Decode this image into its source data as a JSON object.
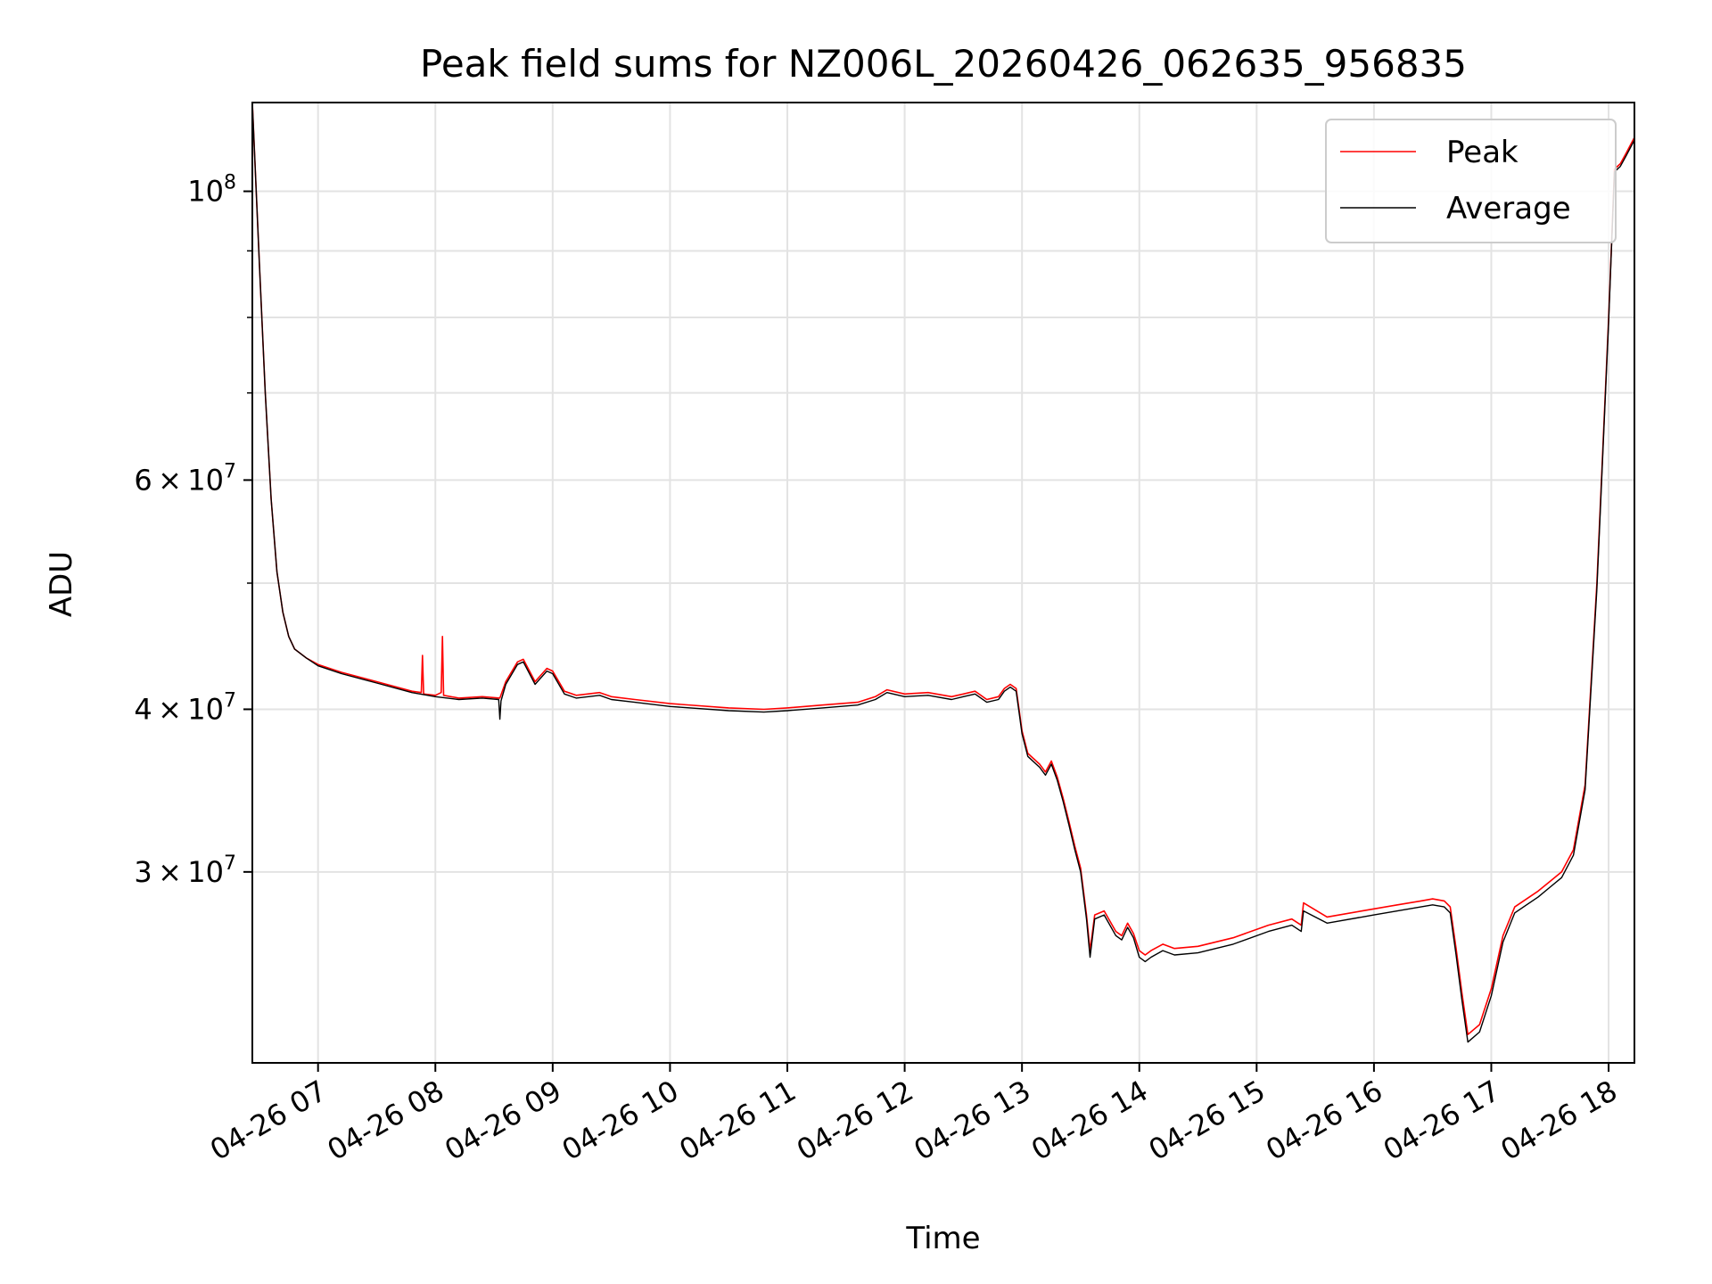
{
  "chart_data": {
    "type": "line",
    "title": "Peak field sums for NZ006L_20260426_062635_956835",
    "xlabel": "Time",
    "ylabel": "ADU",
    "yscale": "log",
    "xlim": [
      6.44,
      18.22
    ],
    "ylim": [
      21400000,
      117000000
    ],
    "grid": true,
    "legend_position": "upper-right",
    "x_ticks": [
      {
        "value": 7,
        "label": "04-26 07"
      },
      {
        "value": 8,
        "label": "04-26 08"
      },
      {
        "value": 9,
        "label": "04-26 09"
      },
      {
        "value": 10,
        "label": "04-26 10"
      },
      {
        "value": 11,
        "label": "04-26 11"
      },
      {
        "value": 12,
        "label": "04-26 12"
      },
      {
        "value": 13,
        "label": "04-26 13"
      },
      {
        "value": 14,
        "label": "04-26 14"
      },
      {
        "value": 15,
        "label": "04-26 15"
      },
      {
        "value": 16,
        "label": "04-26 16"
      },
      {
        "value": 17,
        "label": "04-26 17"
      },
      {
        "value": 18,
        "label": "04-26 18"
      }
    ],
    "y_ticks": [
      {
        "value": 30000000,
        "mantissa": "3",
        "exponent": "7"
      },
      {
        "value": 40000000,
        "mantissa": "4",
        "exponent": "7"
      },
      {
        "value": 60000000,
        "mantissa": "6",
        "exponent": "7"
      },
      {
        "value": 100000000,
        "mantissa": "",
        "exponent": "8"
      }
    ],
    "y_tick_base": "10",
    "y_tick_times": "×",
    "y_minor_ticks": [
      20000000,
      50000000,
      70000000,
      80000000,
      90000000
    ],
    "series": [
      {
        "name": "Peak",
        "color": "#ff0000",
        "x": [
          6.44,
          6.5,
          6.55,
          6.6,
          6.65,
          6.7,
          6.75,
          6.8,
          6.9,
          7.0,
          7.2,
          7.5,
          7.8,
          7.88,
          7.89,
          7.9,
          8.0,
          8.05,
          8.06,
          8.07,
          8.2,
          8.4,
          8.55,
          8.6,
          8.7,
          8.75,
          8.85,
          8.95,
          9.0,
          9.1,
          9.2,
          9.4,
          9.5,
          9.7,
          10.0,
          10.5,
          10.8,
          11.0,
          11.3,
          11.6,
          11.75,
          11.85,
          12.0,
          12.2,
          12.4,
          12.5,
          12.6,
          12.7,
          12.8,
          12.85,
          12.9,
          12.95,
          13.0,
          13.05,
          13.15,
          13.2,
          13.25,
          13.3,
          13.35,
          13.4,
          13.45,
          13.5,
          13.55,
          13.58,
          13.62,
          13.7,
          13.8,
          13.85,
          13.9,
          13.95,
          14.0,
          14.05,
          14.1,
          14.2,
          14.3,
          14.5,
          14.8,
          15.1,
          15.3,
          15.38,
          15.4,
          15.6,
          15.9,
          16.0,
          16.2,
          16.4,
          16.5,
          16.6,
          16.65,
          16.7,
          16.75,
          16.8,
          16.9,
          17.0,
          17.1,
          17.2,
          17.4,
          17.5,
          17.6,
          17.7,
          17.8,
          17.9,
          18.0,
          18.05,
          18.1,
          18.15,
          18.22
        ],
        "y": [
          117000000,
          88000000,
          70000000,
          58000000,
          51000000,
          47500000,
          45500000,
          44500000,
          43800000,
          43300000,
          42700000,
          42000000,
          41300000,
          41200000,
          44000000,
          41100000,
          41000000,
          41200000,
          45500000,
          41000000,
          40800000,
          40900000,
          40800000,
          42000000,
          43500000,
          43700000,
          42000000,
          43000000,
          42800000,
          41300000,
          41000000,
          41200000,
          40900000,
          40700000,
          40400000,
          40100000,
          40000000,
          40100000,
          40300000,
          40500000,
          40900000,
          41400000,
          41100000,
          41200000,
          40900000,
          41100000,
          41300000,
          40700000,
          40900000,
          41500000,
          41800000,
          41500000,
          38500000,
          37000000,
          36300000,
          35800000,
          36500000,
          35500000,
          34200000,
          32800000,
          31400000,
          30200000,
          27800000,
          26100000,
          27800000,
          28000000,
          27000000,
          26800000,
          27400000,
          26900000,
          26100000,
          25900000,
          26100000,
          26400000,
          26200000,
          26300000,
          26700000,
          27300000,
          27600000,
          27300000,
          28400000,
          27700000,
          28000000,
          28100000,
          28300000,
          28500000,
          28600000,
          28500000,
          28200000,
          26200000,
          24200000,
          22500000,
          22900000,
          24400000,
          26800000,
          28200000,
          29000000,
          29500000,
          30000000,
          31200000,
          35000000,
          50000000,
          80000000,
          104000000,
          105000000,
          107000000,
          110000000
        ]
      },
      {
        "name": "Average",
        "color": "#000000",
        "x": [
          6.44,
          6.5,
          6.55,
          6.6,
          6.65,
          6.7,
          6.75,
          6.8,
          6.9,
          7.0,
          7.2,
          7.5,
          7.8,
          8.0,
          8.2,
          8.4,
          8.54,
          8.55,
          8.56,
          8.6,
          8.7,
          8.75,
          8.85,
          8.95,
          9.0,
          9.1,
          9.2,
          9.4,
          9.5,
          9.7,
          10.0,
          10.5,
          10.8,
          11.0,
          11.3,
          11.6,
          11.75,
          11.85,
          12.0,
          12.2,
          12.4,
          12.5,
          12.6,
          12.7,
          12.8,
          12.85,
          12.9,
          12.95,
          13.0,
          13.05,
          13.15,
          13.2,
          13.25,
          13.3,
          13.35,
          13.4,
          13.45,
          13.5,
          13.55,
          13.58,
          13.62,
          13.7,
          13.8,
          13.85,
          13.9,
          13.95,
          14.0,
          14.05,
          14.1,
          14.2,
          14.3,
          14.5,
          14.8,
          15.1,
          15.3,
          15.38,
          15.4,
          15.6,
          15.9,
          16.0,
          16.2,
          16.4,
          16.5,
          16.6,
          16.65,
          16.7,
          16.75,
          16.8,
          16.9,
          17.0,
          17.1,
          17.2,
          17.4,
          17.5,
          17.6,
          17.7,
          17.8,
          17.9,
          18.0,
          18.05,
          18.1,
          18.15,
          18.22
        ],
        "y": [
          117000000,
          88000000,
          70000000,
          58000000,
          51000000,
          47500000,
          45500000,
          44500000,
          43800000,
          43200000,
          42600000,
          41900000,
          41200000,
          40900000,
          40700000,
          40800000,
          40700000,
          39300000,
          40600000,
          41800000,
          43300000,
          43500000,
          41800000,
          42800000,
          42600000,
          41100000,
          40800000,
          41000000,
          40700000,
          40500000,
          40200000,
          39900000,
          39800000,
          39900000,
          40100000,
          40300000,
          40700000,
          41200000,
          40900000,
          41000000,
          40700000,
          40900000,
          41100000,
          40500000,
          40700000,
          41300000,
          41600000,
          41300000,
          38300000,
          36800000,
          36100000,
          35600000,
          36300000,
          35300000,
          34000000,
          32600000,
          31200000,
          30000000,
          27600000,
          25800000,
          27600000,
          27800000,
          26800000,
          26600000,
          27200000,
          26700000,
          25800000,
          25600000,
          25800000,
          26100000,
          25900000,
          26000000,
          26400000,
          27000000,
          27300000,
          27000000,
          28000000,
          27400000,
          27700000,
          27800000,
          28000000,
          28200000,
          28300000,
          28200000,
          27900000,
          25900000,
          23900000,
          22200000,
          22600000,
          24100000,
          26500000,
          27900000,
          28700000,
          29200000,
          29700000,
          30900000,
          34700000,
          49500000,
          79500000,
          103500000,
          104500000,
          106500000,
          109500000
        ]
      }
    ]
  }
}
